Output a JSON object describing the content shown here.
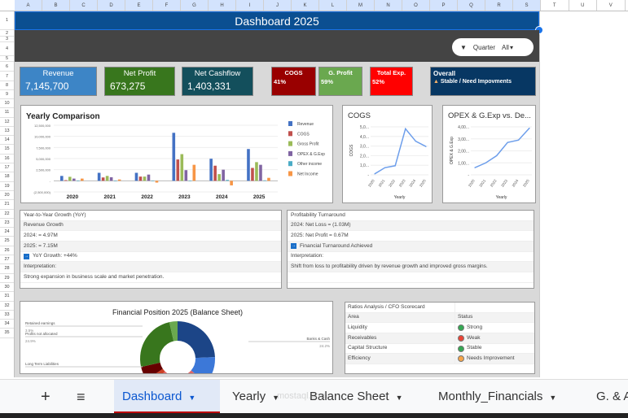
{
  "columns": [
    "A",
    "B",
    "C",
    "D",
    "E",
    "F",
    "G",
    "H",
    "I",
    "J",
    "K",
    "L",
    "M",
    "N",
    "O",
    "P",
    "Q",
    "R",
    "S",
    "T",
    "U",
    "V"
  ],
  "rows": [
    "1",
    "2",
    "3",
    "4",
    "5",
    "6",
    "7",
    "8",
    "9",
    "10",
    "11",
    "12",
    "13",
    "14",
    "15",
    "16",
    "17",
    "18",
    "19",
    "20",
    "21",
    "22",
    "23",
    "24",
    "25",
    "26",
    "27",
    "28",
    "29",
    "30",
    "31",
    "32",
    "33",
    "34",
    "35"
  ],
  "header": {
    "title": "Dashboard 2025",
    "filter": {
      "label": "Quarter",
      "value": "All"
    }
  },
  "kpis": [
    {
      "label": "Revenue",
      "value": "7,145,700",
      "color": "#3d85c6"
    },
    {
      "label": "Net Profit",
      "value": "673,275",
      "color": "#38761d"
    },
    {
      "label": "Net Cashflow",
      "value": "1,403,331",
      "color": "#134f5c"
    },
    {
      "label": "COGS",
      "value": "41%",
      "color": "#990000"
    },
    {
      "label": "G. Profit",
      "value": "59%",
      "color": "#6aa84f"
    },
    {
      "label": "Total Exp.",
      "value": "52%",
      "color": "#ff0000"
    }
  ],
  "overall": {
    "label": "Overall",
    "status": "Stable  / Need Impovments",
    "color": "#073763"
  },
  "chart_data": [
    {
      "type": "bar",
      "title": "Yearly Comparison",
      "categories": [
        "2020",
        "2021",
        "2022",
        "2023",
        "2024",
        "2025"
      ],
      "ylim": [
        -2500000,
        12500000
      ],
      "yticks": [
        "(2,500,000)",
        "-",
        "2,500,000",
        "5,000,000",
        "7,500,000",
        "10,000,000",
        "12,500,000"
      ],
      "legend": "right",
      "series": [
        {
          "name": "Revenue",
          "color": "#4472c4",
          "values": [
            1100000,
            1800000,
            1800000,
            10800000,
            4970000,
            7150000
          ]
        },
        {
          "name": "COGS",
          "color": "#c0504d",
          "values": [
            150000,
            750000,
            950000,
            4800000,
            3400000,
            2900000
          ]
        },
        {
          "name": "Gross Profit",
          "color": "#9bbb59",
          "values": [
            900000,
            1100000,
            950000,
            6000000,
            1500000,
            4200000
          ]
        },
        {
          "name": "OPEX & G.Exp",
          "color": "#8064a2",
          "values": [
            500000,
            800000,
            1400000,
            2400000,
            2500000,
            3600000
          ]
        },
        {
          "name": "Other income",
          "color": "#4bacc6",
          "values": [
            0,
            0,
            50000,
            50000,
            200000,
            100000
          ]
        },
        {
          "name": "Net Income",
          "color": "#f79646",
          "values": [
            500000,
            300000,
            -400000,
            3600000,
            -1030000,
            670000
          ]
        }
      ]
    },
    {
      "type": "line",
      "title": "COGS",
      "xlabel": "Yearly",
      "ylabel": "COGS",
      "categories": [
        "2020",
        "2021",
        "2022",
        "2023",
        "2024",
        "2025"
      ],
      "ylim": [
        0,
        5000000
      ],
      "yticks": [
        "-",
        "1,0...",
        "2,0...",
        "3,0...",
        "4,0...",
        "5,0..."
      ],
      "values": [
        100000,
        750000,
        950000,
        4800000,
        3500000,
        2950000
      ],
      "color": "#6d9eeb"
    },
    {
      "type": "line",
      "title": "OPEX & G.Exp vs. De...",
      "xlabel": "Yearly",
      "ylabel": "OPEX & G.Exp",
      "categories": [
        "2020",
        "2021",
        "2022",
        "2023",
        "2024",
        "2025"
      ],
      "ylim": [
        0,
        4000000
      ],
      "yticks": [
        "-",
        "1,00...",
        "2,00...",
        "3,00...",
        "4,00..."
      ],
      "values": [
        600000,
        1000000,
        1600000,
        2700000,
        2900000,
        3900000
      ],
      "color": "#6d9eeb"
    },
    {
      "type": "pie",
      "title": "Financial Position 2025 (Balance Sheet)",
      "donut": true,
      "slices": [
        {
          "name": "Banks & Cash",
          "percent": "24.2%",
          "value": 24.2,
          "color": "#1c4587"
        },
        {
          "name": "",
          "value": 12,
          "color": "#3c78d8"
        },
        {
          "name": "",
          "value": 3,
          "color": "#cc4125"
        },
        {
          "name": "Long Term Liabilities",
          "value": 6,
          "color": "#660000"
        },
        {
          "name": "Profits not allocated",
          "percent": "24.9%",
          "value": 24.9,
          "color": "#38761d"
        },
        {
          "name": "Retained earnings",
          "percent": "3.5%",
          "value": 3.5,
          "color": "#6aa84f"
        }
      ]
    }
  ],
  "yoy": {
    "rows": [
      "Year-to-Year Growth (YoY)",
      "Revenue Growth",
      "2024: = 4.97M",
      "2025: = 7.15M",
      "YoY Growth: +44%",
      "Interpretation:",
      "Strong expansion in business scale and market penetration."
    ]
  },
  "turnaround": {
    "rows": [
      "Profitability Turnaround",
      "2024: Net Loss = (1.03M)",
      "2025: Net Profit = 0.67M",
      "Financial Turnaround Achieved",
      "Interpretation:",
      "Shift from loss to profitability driven by revenue growth and improved gross margins.",
      ""
    ]
  },
  "scorecard": {
    "title": "Ratios Analysis /  CFO Scorecard",
    "headers": [
      "Area",
      "Status"
    ],
    "rows": [
      {
        "area": "Liquidity",
        "status": "Strong",
        "color": "#34a853"
      },
      {
        "area": "Receivables",
        "status": "Weak",
        "color": "#ea4335"
      },
      {
        "area": "Capital Structure",
        "status": "Stable",
        "color": "#34a853"
      },
      {
        "area": "Efficiency",
        "status": "Needs Improvement",
        "color": "#f6a54a"
      }
    ]
  },
  "tabs": [
    {
      "label": "Dashboard",
      "active": true
    },
    {
      "label": "Yearly"
    },
    {
      "label": "Balance Sheet"
    },
    {
      "label": "Monthly_Financials"
    },
    {
      "label": "G. & A"
    }
  ],
  "watermark": "mostaql.com"
}
